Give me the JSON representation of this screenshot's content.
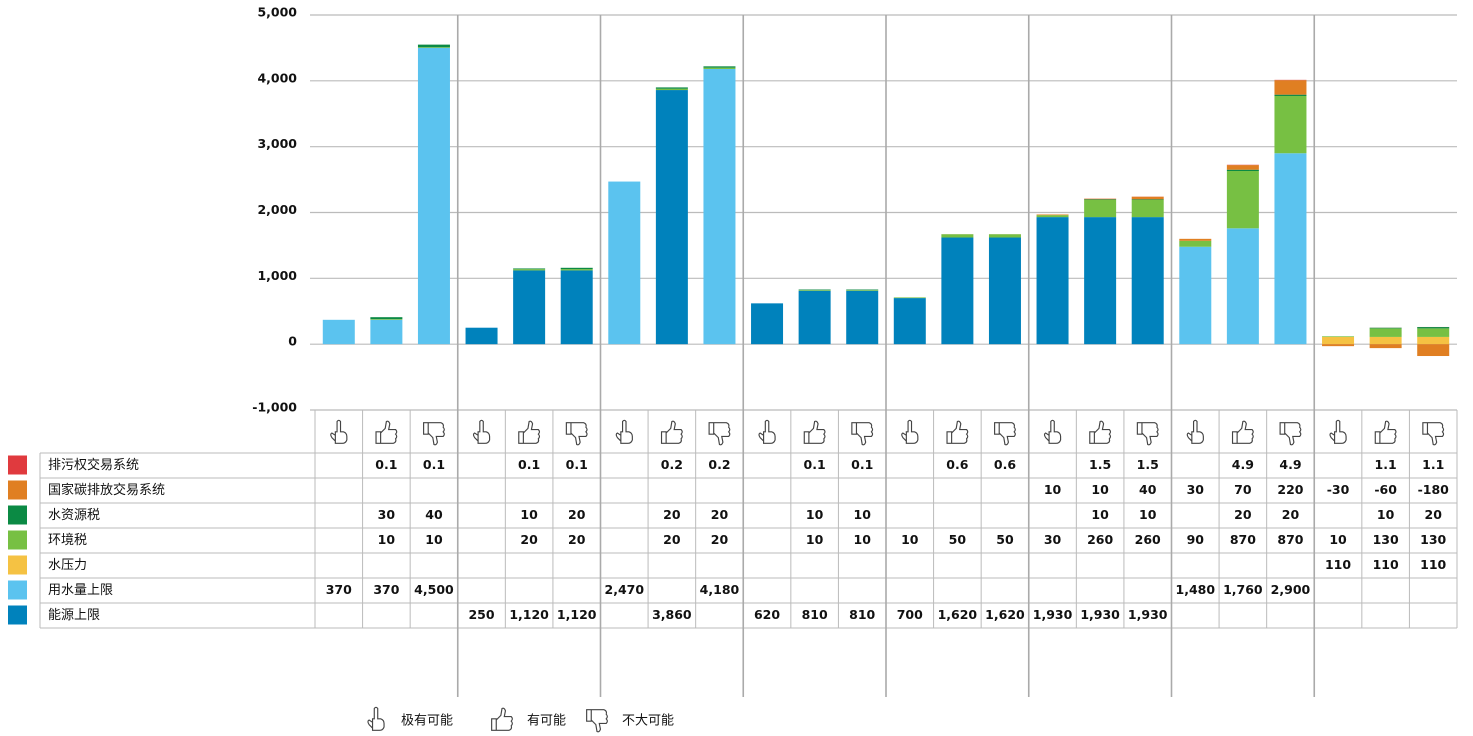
{
  "chart_data": {
    "type": "stacked-bar",
    "ylim": [
      -1000,
      5000
    ],
    "yticks": [
      {
        "value": -1000,
        "label": "-1,000"
      },
      0,
      {
        "value": 1000,
        "label": "1,000"
      },
      {
        "value": 2000,
        "label": "2,000"
      },
      {
        "value": 3000,
        "label": "3,000"
      },
      {
        "value": 4000,
        "label": "4,000"
      },
      {
        "value": 5000,
        "label": "5,000"
      }
    ],
    "grid": true,
    "scenario_legend": [
      "极有可能",
      "有可能",
      "不大可能"
    ],
    "series": [
      {
        "name": "排污权交易系统",
        "color": "#e03a3e",
        "values": [
          null,
          0.1,
          0.1,
          null,
          0.1,
          0.1,
          null,
          0.2,
          0.2,
          null,
          0.1,
          0.1,
          null,
          0.6,
          0.6,
          null,
          1.5,
          1.5,
          null,
          4.9,
          4.9,
          null,
          1.1,
          1.1
        ]
      },
      {
        "name": "国家碳排放交易系统",
        "color": "#e07f22",
        "values": [
          null,
          null,
          null,
          null,
          null,
          null,
          null,
          null,
          null,
          null,
          null,
          null,
          null,
          null,
          null,
          10,
          10,
          40,
          30,
          70,
          220,
          -30,
          -60,
          -180
        ]
      },
      {
        "name": "水资源税",
        "color": "#0b8a44",
        "values": [
          null,
          30,
          40,
          null,
          10,
          20,
          null,
          20,
          20,
          null,
          10,
          10,
          null,
          null,
          null,
          null,
          10,
          10,
          null,
          20,
          20,
          null,
          10,
          20
        ]
      },
      {
        "name": "环境税",
        "color": "#77c043",
        "values": [
          null,
          10,
          10,
          null,
          20,
          20,
          null,
          20,
          20,
          null,
          10,
          10,
          10,
          50,
          50,
          30,
          260,
          260,
          90,
          870,
          870,
          10,
          130,
          130
        ]
      },
      {
        "name": "水压力",
        "color": "#f5c243",
        "values": [
          null,
          null,
          null,
          null,
          null,
          null,
          null,
          null,
          null,
          null,
          null,
          null,
          null,
          null,
          null,
          null,
          null,
          null,
          null,
          null,
          null,
          110,
          110,
          110
        ]
      },
      {
        "name": "用水量上限",
        "color": "#5bc3ef",
        "values": [
          370,
          370,
          4500,
          null,
          null,
          null,
          2470,
          null,
          4180,
          null,
          null,
          null,
          null,
          null,
          null,
          null,
          null,
          null,
          1480,
          1760,
          2900,
          null,
          null,
          null
        ],
        "value_labels": [
          "370",
          "370",
          "4,500",
          null,
          null,
          null,
          "2,470",
          null,
          "4,180",
          null,
          null,
          null,
          null,
          null,
          null,
          null,
          null,
          null,
          "1,480",
          "1,760",
          "2,900",
          null,
          null,
          null
        ]
      },
      {
        "name": "能源上限",
        "color": "#0082bc",
        "values": [
          null,
          null,
          null,
          250,
          1120,
          1120,
          null,
          3860,
          null,
          620,
          810,
          810,
          700,
          1620,
          1620,
          1930,
          1930,
          1930,
          null,
          null,
          null,
          null,
          null,
          null
        ],
        "value_labels": [
          null,
          null,
          null,
          "250",
          "1,120",
          "1,120",
          null,
          "3,860",
          null,
          "620",
          "810",
          "810",
          "700",
          "1,620",
          "1,620",
          "1,930",
          "1,930",
          "1,930",
          null,
          null,
          null,
          null,
          null,
          null
        ]
      }
    ]
  }
}
